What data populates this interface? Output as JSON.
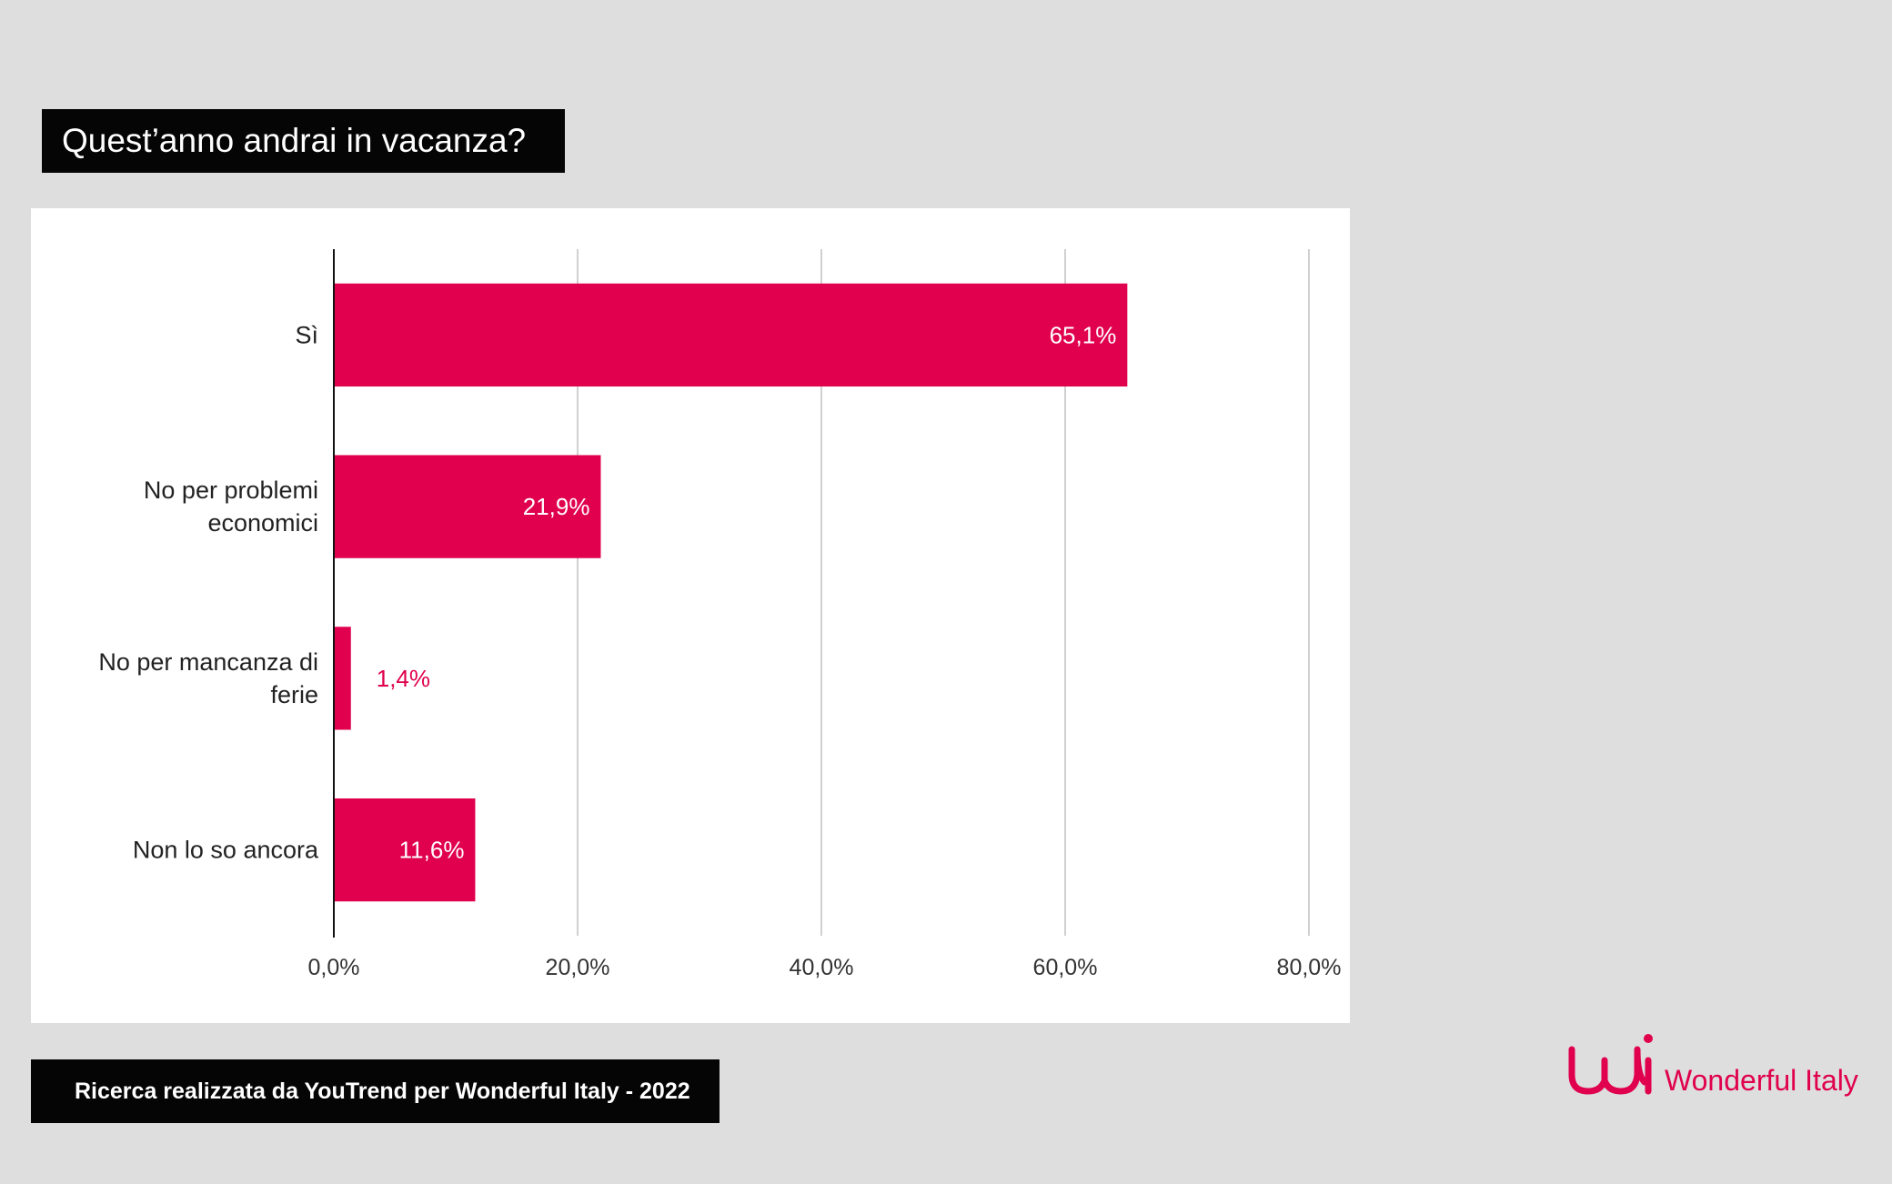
{
  "title": "Quest’anno andrai in vacanza?",
  "footer": "Ricerca realizzata da YouTrend per  Wonderful Italy - 2022",
  "logo": {
    "text": "Wonderful Italy",
    "mark": "wi-logo-icon"
  },
  "colors": {
    "bar": "#e0004d",
    "bar_label_inside": "#ffffff",
    "bar_label_outside": "#e0004d",
    "axis": "#111111",
    "grid": "#d0d0d0"
  },
  "chart_data": {
    "type": "bar",
    "orientation": "horizontal",
    "categories": [
      [
        "Sì"
      ],
      [
        "No per problemi",
        "economici"
      ],
      [
        "No per mancanza di",
        "ferie"
      ],
      [
        "Non lo so ancora"
      ]
    ],
    "values": [
      65.1,
      21.9,
      1.4,
      11.6
    ],
    "value_labels": [
      "65,1%",
      "21,9%",
      "1,4%",
      "11,6%"
    ],
    "x_ticks": [
      0,
      20,
      40,
      60,
      80
    ],
    "x_tick_labels": [
      "0,0%",
      "20,0%",
      "40,0%",
      "60,0%",
      "80,0%"
    ],
    "xlim": [
      0,
      80
    ],
    "grid": true,
    "title": "Quest’anno andrai in vacanza?"
  }
}
